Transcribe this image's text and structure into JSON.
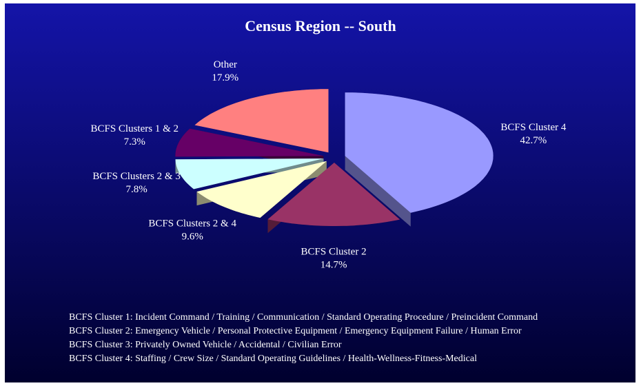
{
  "chart_data": {
    "type": "pie",
    "title": "Census Region -- South",
    "categories": [
      "BCFS Cluster 4",
      "BCFS Cluster 2",
      "BCFS Clusters 2 & 4",
      "BCFS Clusters 2 & 3",
      "BCFS Clusters 1 & 2",
      "Other"
    ],
    "values": [
      42.7,
      14.7,
      9.6,
      7.8,
      7.3,
      17.9
    ],
    "value_labels": [
      "42.7%",
      "14.7%",
      "9.6%",
      "7.8%",
      "7.3%",
      "17.9%"
    ],
    "colors": [
      "#9999ff",
      "#993366",
      "#ffffcc",
      "#ccffff",
      "#660066",
      "#ff8080"
    ],
    "notes": [
      "BCFS Cluster 1:  Incident Command / Training / Communication / Standard Operating Procedure / Preincident Command",
      "BCFS Cluster 2:  Emergency Vehicle / Personal Protective Equipment / Emergency Equipment Failure / Human Error",
      "BCFS Cluster 3:  Privately Owned Vehicle / Accidental / Civilian Error",
      "BCFS Cluster 4:  Staffing / Crew Size / Standard Operating Guidelines / Health-Wellness-Fitness-Medical"
    ]
  }
}
